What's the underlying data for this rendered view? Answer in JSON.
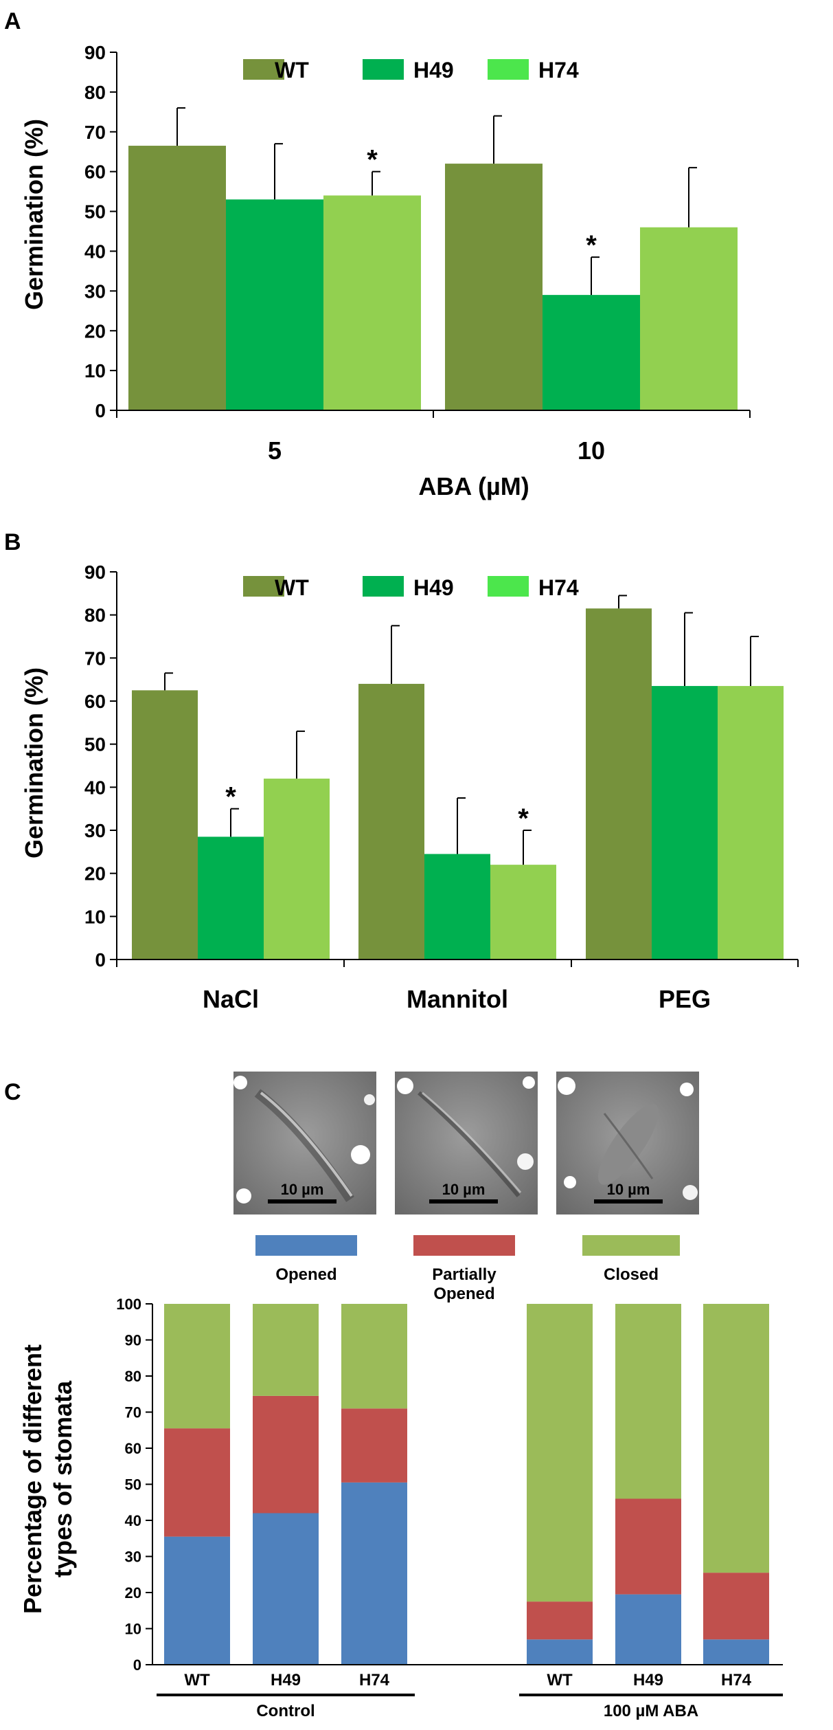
{
  "panels": {
    "a": "A",
    "b": "B",
    "c": "C"
  },
  "colors": {
    "wt": "#76923c",
    "h49": "#00b050",
    "h74": "#92d050",
    "legend_h74": "#4ce64c",
    "opened": "#4f81bd",
    "partially": "#c0504d",
    "closed": "#9bbb59"
  },
  "micrographs": [
    {
      "scale": "10 µm",
      "state": "opened"
    },
    {
      "scale": "10 µm",
      "state": "partially-opened"
    },
    {
      "scale": "10 µm",
      "state": "closed"
    }
  ],
  "chart_data": [
    {
      "type": "bar",
      "panel": "A",
      "ylabel": "Germination (%)",
      "xlabel": "ABA (µM)",
      "ylim": [
        0,
        90
      ],
      "yticks": [
        0,
        10,
        20,
        30,
        40,
        50,
        60,
        70,
        80,
        90
      ],
      "categories": [
        "5",
        "10"
      ],
      "series": [
        {
          "name": "WT",
          "values": [
            66.5,
            62.0
          ],
          "errors": [
            9.5,
            12.0
          ],
          "sig": [
            false,
            false
          ]
        },
        {
          "name": "H49",
          "values": [
            53.0,
            29.0
          ],
          "errors": [
            14.0,
            9.5
          ],
          "sig": [
            false,
            true
          ]
        },
        {
          "name": "H74",
          "values": [
            54.0,
            46.0
          ],
          "errors": [
            6.0,
            15.0
          ],
          "sig": [
            true,
            false
          ]
        }
      ],
      "sig_label": "*"
    },
    {
      "type": "bar",
      "panel": "B",
      "ylabel": "Germination (%)",
      "xlabel": "",
      "ylim": [
        0,
        90
      ],
      "yticks": [
        0,
        10,
        20,
        30,
        40,
        50,
        60,
        70,
        80,
        90
      ],
      "categories": [
        "NaCl",
        "Mannitol",
        "PEG"
      ],
      "series": [
        {
          "name": "WT",
          "values": [
            62.5,
            64.0,
            81.5
          ],
          "errors": [
            4.0,
            13.5,
            3.0
          ],
          "sig": [
            false,
            false,
            false
          ]
        },
        {
          "name": "H49",
          "values": [
            28.5,
            24.5,
            63.5
          ],
          "errors": [
            6.5,
            13.0,
            17.0
          ],
          "sig": [
            true,
            false,
            false
          ]
        },
        {
          "name": "H74",
          "values": [
            42.0,
            22.0,
            63.5
          ],
          "errors": [
            11.0,
            8.0,
            11.5
          ],
          "sig": [
            false,
            true,
            false
          ]
        }
      ],
      "sig_label": "*"
    },
    {
      "type": "bar",
      "stacked": true,
      "panel": "C",
      "ylabel_line1": "Percentage of different",
      "ylabel_line2": "types of stomata",
      "ylim": [
        0,
        100
      ],
      "yticks": [
        0,
        10,
        20,
        30,
        40,
        50,
        60,
        70,
        80,
        90,
        100
      ],
      "legend": [
        "Opened",
        "Partially Opened",
        "Closed"
      ],
      "legend_labels": {
        "opened": "Opened",
        "partially_1": "Partially",
        "partially_2": "Opened",
        "closed": "Closed"
      },
      "groups": [
        {
          "name": "Control",
          "categories": [
            "WT",
            "H49",
            "H74"
          ],
          "opened": [
            35.5,
            42.0,
            50.5
          ],
          "partially": [
            30.0,
            32.5,
            20.5
          ],
          "closed": [
            34.5,
            25.5,
            29.0
          ]
        },
        {
          "name": "100 µM ABA",
          "categories": [
            "WT",
            "H49",
            "H74"
          ],
          "opened": [
            7.0,
            19.5,
            7.0
          ],
          "partially": [
            10.5,
            26.5,
            18.5
          ],
          "closed": [
            82.5,
            54.0,
            74.5
          ]
        }
      ]
    }
  ]
}
